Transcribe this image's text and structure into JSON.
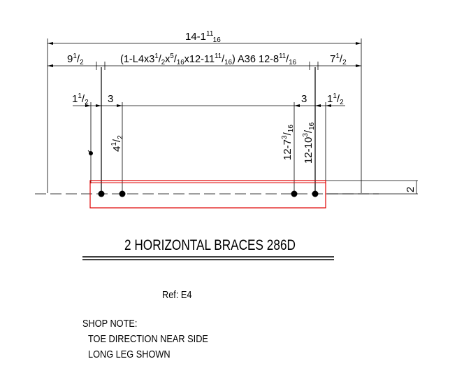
{
  "dimensions": {
    "overall": {
      "main": "14-1",
      "sup": "11",
      "sub": "16"
    },
    "left_end": {
      "main": "9",
      "sup": "1",
      "sub": "2"
    },
    "right_end": {
      "main": "7",
      "sup": "1",
      "sub": "2"
    },
    "member": {
      "p1": "(1-L4x3",
      "p1_sup": "1",
      "p1_sub": "2",
      "p2": "x",
      "p2_sup": "5",
      "p2_sub": "16",
      "p3": "x12-11",
      "p3_sup": "11",
      "p3_sub": "16",
      "p4": ")  A36  12-8",
      "p4_sup": "11",
      "p4_sub": "16"
    },
    "left_edge": {
      "main": "1",
      "sup": "1",
      "sub": "2"
    },
    "left_spacing": "3",
    "right_spacing": "3",
    "right_edge": {
      "main": "1",
      "sup": "1",
      "sub": "2"
    },
    "left_gage": {
      "main": "4",
      "sup": "1",
      "sub": "2"
    },
    "right_hole_1": {
      "main": "12-7",
      "sup": "3",
      "sub": "16"
    },
    "right_hole_2": {
      "main": "12-10",
      "sup": "3",
      "sub": "16"
    },
    "vertical_offset": "2"
  },
  "title": "2 HORIZONTAL BRACES 286D",
  "reference": "Ref: E4",
  "shop_note": {
    "heading": "SHOP NOTE:",
    "lines": [
      "TOE DIRECTION NEAR SIDE",
      "LONG LEG SHOWN"
    ]
  },
  "colors": {
    "outline": "#e00000",
    "lines": "#000000"
  }
}
